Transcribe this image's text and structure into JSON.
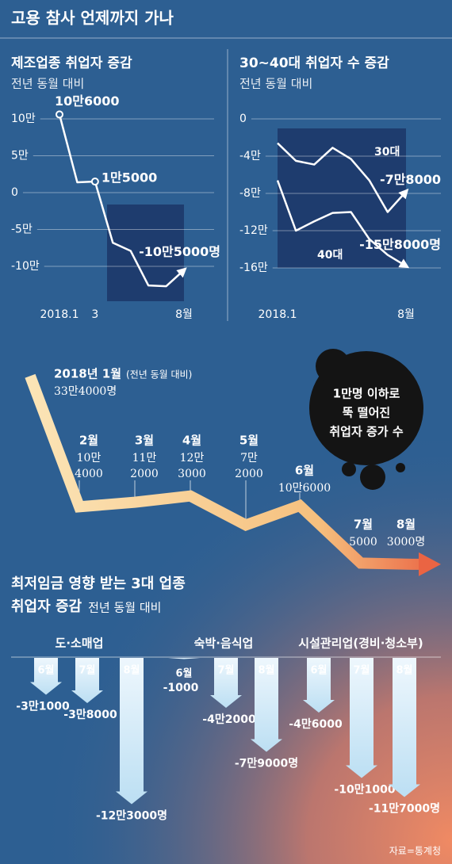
{
  "title": "고용 참사 언제까지 가나",
  "source": "자료=통계청",
  "chart_data": [
    {
      "type": "line",
      "title": "제조업종 취업자 증감",
      "subtitle": "전년 동월 대비",
      "categories": [
        "2018.1",
        null,
        "3",
        null,
        null,
        null,
        null,
        "8월"
      ],
      "values": [
        106000,
        14000,
        15000,
        -68000,
        -79000,
        -126000,
        -127000,
        -105000
      ],
      "value_labels": [
        "10만6000",
        null,
        "1만5000",
        null,
        null,
        null,
        null,
        "-10만5000명"
      ],
      "color": "#ffffff",
      "ylim": [
        -150000,
        110000
      ],
      "yticks": [
        {
          "value": 100000,
          "label": "10만"
        },
        {
          "value": 50000,
          "label": "5만"
        },
        0,
        {
          "value": -50000,
          "label": "-5만"
        },
        {
          "value": -100000,
          "label": "-10만"
        }
      ],
      "grid": true
    },
    {
      "type": "line",
      "title": "30~40대 취업자 수 증감",
      "subtitle": "전년 동월 대비",
      "categories": [
        "2018.1",
        null,
        null,
        null,
        null,
        null,
        null,
        "8월"
      ],
      "series": [
        {
          "name": "30대",
          "color": "#ffffff",
          "values": [
            -26000,
            -45000,
            -49000,
            -31000,
            -43000,
            -66000,
            -100000,
            -78000
          ],
          "value_labels": [
            null,
            null,
            null,
            null,
            null,
            null,
            null,
            "-7만8000"
          ]
        },
        {
          "name": "40대",
          "color": "#ffffff",
          "values": [
            -66000,
            -120000,
            -110000,
            -101000,
            -100000,
            -129000,
            -146000,
            -158000
          ],
          "value_labels": [
            null,
            null,
            null,
            null,
            null,
            null,
            null,
            "-15만8000명"
          ]
        }
      ],
      "ylim": [
        -170000,
        10000
      ],
      "yticks": [
        0,
        {
          "value": -40000,
          "label": "-4만"
        },
        {
          "value": -80000,
          "label": "-8만"
        },
        {
          "value": -120000,
          "label": "-12만"
        },
        {
          "value": -160000,
          "label": "-16만"
        }
      ],
      "grid": true
    },
    {
      "type": "arrow",
      "subtitle": "(전년 동월 대비)",
      "categories": [
        "2018년 1월",
        "2월",
        "3월",
        "4월",
        "5월",
        "6월",
        "7월",
        "8월"
      ],
      "values": [
        334000,
        104000,
        112000,
        123000,
        72000,
        106000,
        5000,
        3000
      ],
      "value_labels": [
        "33만4000명",
        "10만4000",
        "11만2000",
        "12만3000",
        "7만2000",
        "10만6000",
        "5000",
        "3000명"
      ],
      "ylim": [
        0,
        340000
      ],
      "badge": [
        "1만명 이하로",
        "뚝 떨어진",
        "취업자 증가 수"
      ]
    },
    {
      "type": "bar",
      "title": "최저임금 영향 받는 3대 업종",
      "subtitle": "취업자 증감",
      "note": "전년 동월 대비",
      "categories": [
        "6월",
        "7월",
        "8월"
      ],
      "series": [
        {
          "name": "도·소매업",
          "values": [
            -31000,
            -38000,
            -123000
          ],
          "value_labels": [
            "-3만1000",
            "-3만8000",
            "-12만3000명"
          ]
        },
        {
          "name": "숙박·음식업",
          "values": [
            -1000,
            -42000,
            -79000
          ],
          "value_labels": [
            "-1000",
            "-4만2000",
            "-7만9000명"
          ]
        },
        {
          "name": "시설관리업(경비·청소부)",
          "values": [
            -46000,
            -101000,
            -117000
          ],
          "value_labels": [
            "-4만6000",
            "-10만1000",
            "-11만7000명"
          ]
        }
      ],
      "ylim": [
        -130000,
        0
      ],
      "color": "#cfe8f7"
    }
  ]
}
